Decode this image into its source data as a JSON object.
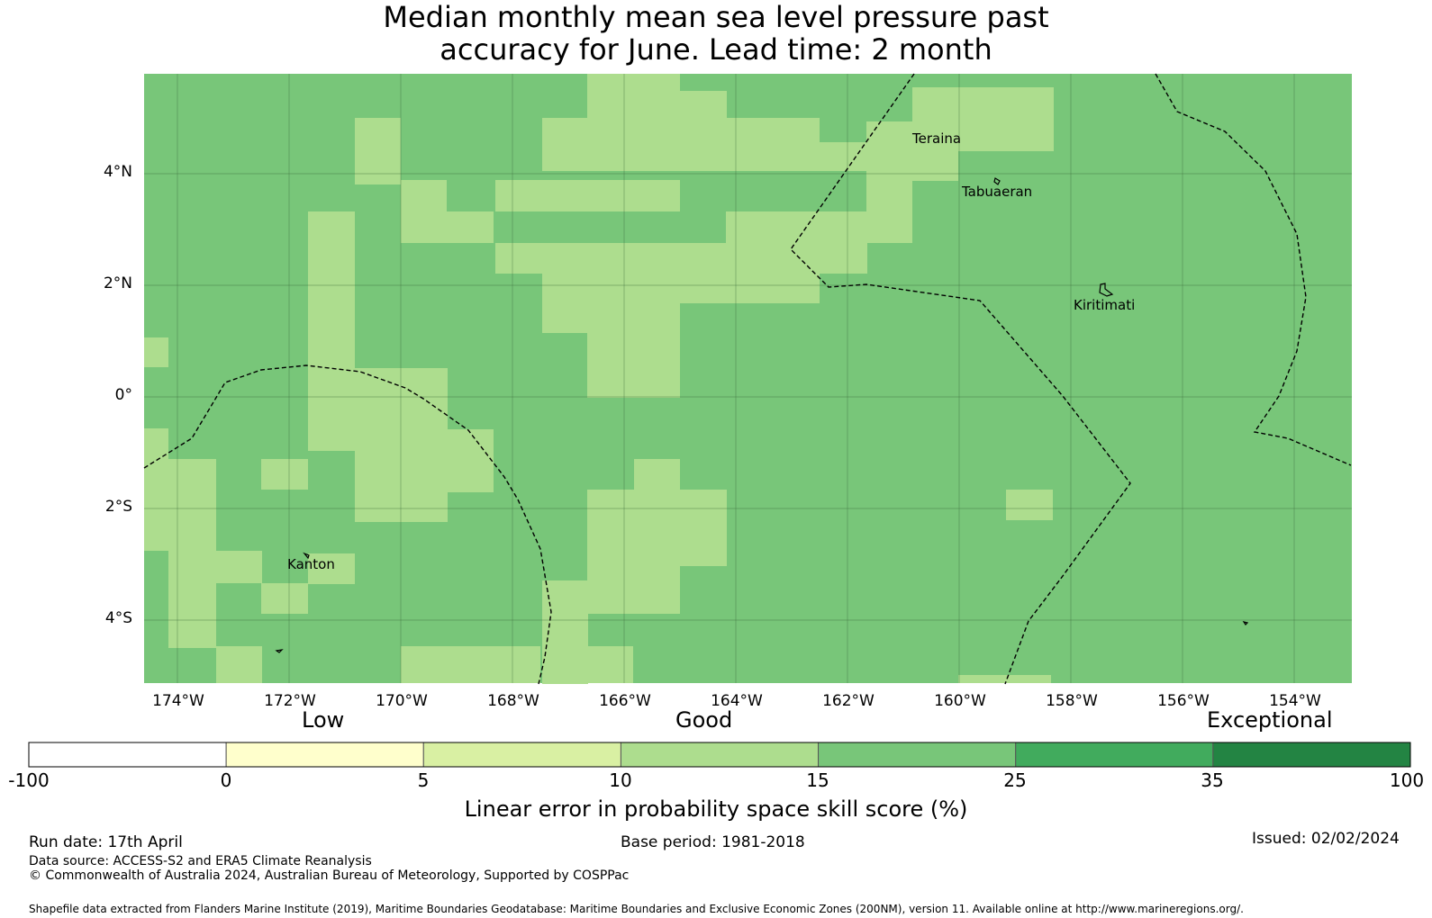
{
  "title_line1": "Median monthly mean sea level pressure past",
  "title_line2": "accuracy for June. Lead time: 2 month",
  "map": {
    "lat_labels": [
      "4°N",
      "2°N",
      "0°",
      "2°S",
      "4°S"
    ],
    "lon_labels": [
      "174°W",
      "172°W",
      "170°W",
      "168°W",
      "166°W",
      "164°W",
      "162°W",
      "160°W",
      "158°W",
      "156°W",
      "154°W"
    ],
    "places": [
      "Teraina",
      "Tabuaeran",
      "Kiritimati",
      "Kanton"
    ],
    "colors": {
      "skill_15_25": "#78c679",
      "skill_10_15": "#addd8e",
      "grid": "#3d6b3d",
      "boundary": "#000000"
    }
  },
  "colorbar": {
    "categories": [
      "Low",
      "Good",
      "Exceptional"
    ],
    "ticks": [
      "-100",
      "0",
      "5",
      "10",
      "15",
      "25",
      "35",
      "100"
    ],
    "colors": [
      "#ffffff",
      "#ffffcc",
      "#d9f0a3",
      "#addd8e",
      "#78c679",
      "#41ab5d",
      "#238443"
    ],
    "label": "Linear error in probability space skill score (%)"
  },
  "footer": {
    "run_date": "Run date: 17th April",
    "base_period": "Base period: 1981-2018",
    "issued": "Issued: 02/02/2024",
    "data_source": "Data source: ACCESS-S2 and ERA5 Climate Reanalysis",
    "copyright": "© Commonwealth of Australia 2024, Australian Bureau of Meteorology, Supported by COSPPac",
    "shapefile": "Shapefile data extracted from Flanders Marine Institute (2019), Maritime Boundaries Geodatabase: Maritime Boundaries and Exclusive Economic Zones (200NM), version 11. Available online at http://www.marineregions.org/."
  }
}
